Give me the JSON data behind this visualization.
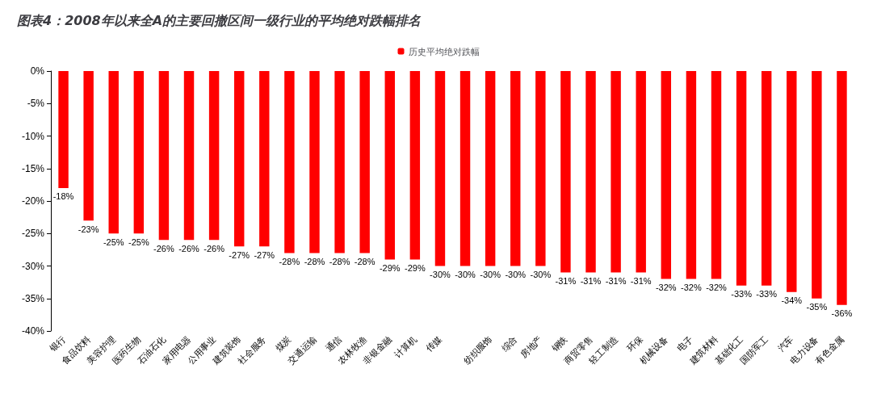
{
  "chart_data": {
    "type": "bar",
    "title": "图表4：2008年以来全A的主要回撤区间一级行业的平均绝对跌幅排名",
    "categories": [
      "银行",
      "食品饮料",
      "美容护理",
      "医药生物",
      "石油石化",
      "家用电器",
      "公用事业",
      "建筑装饰",
      "社会服务",
      "煤炭",
      "交通运输",
      "通信",
      "农林牧渔",
      "非银金融",
      "计算机",
      "传媒",
      null,
      "纺织服饰",
      "综合",
      "房地产",
      "钢铁",
      "商贸零售",
      "轻工制造",
      "环保",
      "机械设备",
      "电子",
      "建筑材料",
      "基础化工",
      "国防军工",
      "汽车",
      "电力设备",
      "有色金属"
    ],
    "series": [
      {
        "name": "历史平均绝对跌幅",
        "color": "#ff0000",
        "values": [
          -18,
          -23,
          -25,
          -25,
          -26,
          -26,
          -26,
          -27,
          -27,
          -28,
          -28,
          -28,
          -28,
          -29,
          -29,
          -30,
          -30,
          -30,
          -30,
          -30,
          -31,
          -31,
          -31,
          -31,
          -32,
          -32,
          -32,
          -33,
          -33,
          -34,
          -35,
          -36
        ],
        "value_labels": [
          "-18%",
          "-23%",
          "-25%",
          "-25%",
          "-26%",
          "-26%",
          "-26%",
          "-27%",
          "-27%",
          "-28%",
          "-28%",
          "-28%",
          "-28%",
          "-29%",
          "-29%",
          "-30%",
          "-30%",
          "-30%",
          "-30%",
          "-30%",
          "-31%",
          "-31%",
          "-31%",
          "-31%",
          "-32%",
          "-32%",
          "-32%",
          "-33%",
          "-33%",
          "-34%",
          "-35%",
          "-36%"
        ]
      }
    ],
    "ylim": [
      -40,
      0
    ],
    "yticks": [
      {
        "value": 0,
        "label": "0%"
      },
      {
        "value": -5,
        "label": "-5%"
      },
      {
        "value": -10,
        "label": "-10%"
      },
      {
        "value": -15,
        "label": "-15%"
      },
      {
        "value": -20,
        "label": "-20%"
      },
      {
        "value": -25,
        "label": "-25%"
      },
      {
        "value": -30,
        "label": "-30%"
      },
      {
        "value": -35,
        "label": "-35%"
      },
      {
        "value": -40,
        "label": "-40%"
      }
    ],
    "grid": false,
    "legend": "top"
  }
}
